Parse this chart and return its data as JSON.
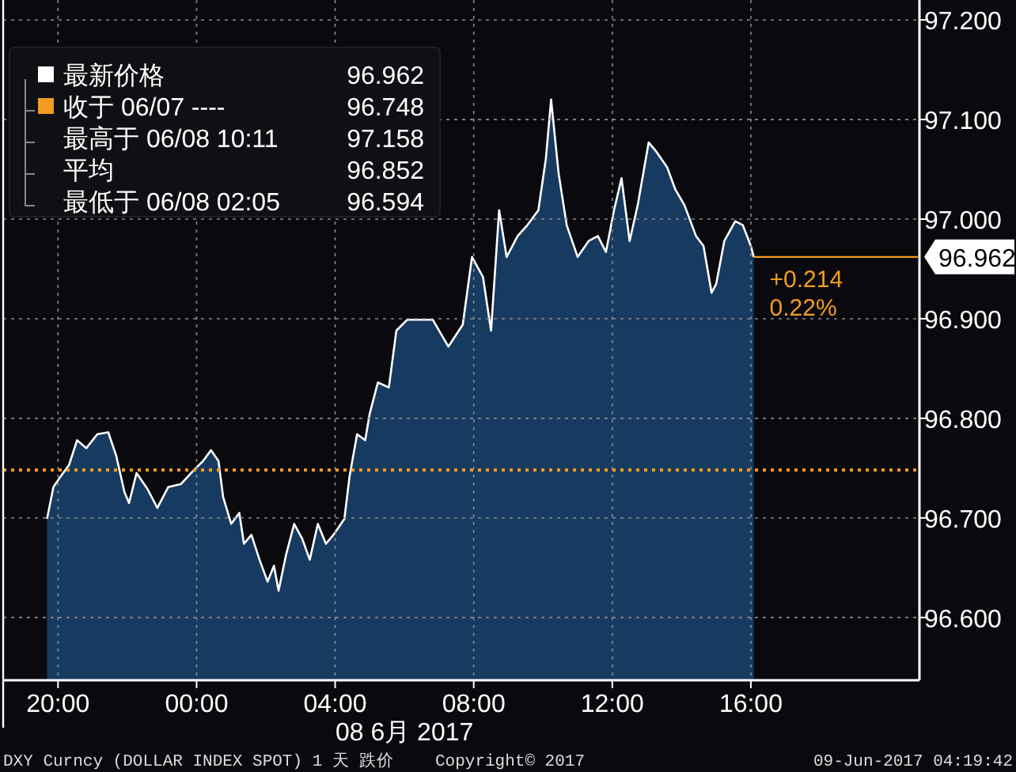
{
  "chart_data": {
    "type": "area",
    "xlabel": "08 6月 2017",
    "x": [
      "2017-06-07T19:41",
      "2017-06-07T19:52",
      "2017-06-07T20:05",
      "2017-06-07T20:19",
      "2017-06-07T20:33",
      "2017-06-07T20:49",
      "2017-06-07T21:08",
      "2017-06-07T21:27",
      "2017-06-07T21:41",
      "2017-06-07T21:55",
      "2017-06-07T22:03",
      "2017-06-07T22:16",
      "2017-06-07T22:35",
      "2017-06-07T22:52",
      "2017-06-07T23:11",
      "2017-06-07T23:33",
      "2017-06-07T23:52",
      "2017-06-08T00:11",
      "2017-06-08T00:25",
      "2017-06-08T00:38",
      "2017-06-08T00:46",
      "2017-06-08T01:00",
      "2017-06-08T01:14",
      "2017-06-08T01:22",
      "2017-06-08T01:35",
      "2017-06-08T01:49",
      "2017-06-08T02:03",
      "2017-06-08T02:14",
      "2017-06-08T02:22",
      "2017-06-08T02:35",
      "2017-06-08T02:49",
      "2017-06-08T03:03",
      "2017-06-08T03:16",
      "2017-06-08T03:30",
      "2017-06-08T03:44",
      "2017-06-08T03:57",
      "2017-06-08T04:16",
      "2017-06-08T04:25",
      "2017-06-08T04:38",
      "2017-06-08T04:52",
      "2017-06-08T05:00",
      "2017-06-08T05:14",
      "2017-06-08T05:33",
      "2017-06-08T05:46",
      "2017-06-08T06:05",
      "2017-06-08T06:14",
      "2017-06-08T06:49",
      "2017-06-08T07:16",
      "2017-06-08T07:41",
      "2017-06-08T07:57",
      "2017-06-08T08:16",
      "2017-06-08T08:30",
      "2017-06-08T08:44",
      "2017-06-08T08:57",
      "2017-06-08T09:16",
      "2017-06-08T09:33",
      "2017-06-08T09:52",
      "2017-06-08T10:05",
      "2017-06-08T10:14",
      "2017-06-08T10:27",
      "2017-06-08T10:41",
      "2017-06-08T11:00",
      "2017-06-08T11:19",
      "2017-06-08T11:35",
      "2017-06-08T11:49",
      "2017-06-08T12:03",
      "2017-06-08T12:16",
      "2017-06-08T12:30",
      "2017-06-08T12:44",
      "2017-06-08T13:03",
      "2017-06-08T13:16",
      "2017-06-08T13:35",
      "2017-06-08T13:49",
      "2017-06-08T14:05",
      "2017-06-08T14:25",
      "2017-06-08T14:38",
      "2017-06-08T14:52",
      "2017-06-08T15:00",
      "2017-06-08T15:14",
      "2017-06-08T15:33",
      "2017-06-08T15:46",
      "2017-06-08T16:00",
      "2017-06-08T16:05"
    ],
    "series": [
      {
        "color": "#173a60",
        "values": [
          96.699,
          96.731,
          96.742,
          96.753,
          96.778,
          96.77,
          96.784,
          96.786,
          96.762,
          96.726,
          96.715,
          96.745,
          96.729,
          96.71,
          96.731,
          96.734,
          96.746,
          96.757,
          96.768,
          96.757,
          96.721,
          96.694,
          96.705,
          96.674,
          96.683,
          96.658,
          96.636,
          96.652,
          96.627,
          96.663,
          96.694,
          96.679,
          96.658,
          96.694,
          96.674,
          96.683,
          96.699,
          96.742,
          96.784,
          96.778,
          96.805,
          96.836,
          96.831,
          96.888,
          96.899,
          96.899,
          96.899,
          96.872,
          96.894,
          96.962,
          96.942,
          96.888,
          97.009,
          96.962,
          96.983,
          96.994,
          97.009,
          97.061,
          97.12,
          97.046,
          96.994,
          96.962,
          96.978,
          96.983,
          96.967,
          97.009,
          97.041,
          96.978,
          97.014,
          97.077,
          97.068,
          97.052,
          97.03,
          97.014,
          96.983,
          96.973,
          96.926,
          96.935,
          96.978,
          96.998,
          96.994,
          96.973,
          96.962
        ]
      }
    ],
    "xlim": [
      "2017-06-07T18:25",
      "2017-06-08T20:52"
    ],
    "xticks": [
      {
        "value": "2017-06-07T20:00",
        "label": "20:00"
      },
      {
        "value": "2017-06-08T00:00",
        "label": "00:00"
      },
      {
        "value": "2017-06-08T04:00",
        "label": "04:00"
      },
      {
        "value": "2017-06-08T08:00",
        "label": "08:00"
      },
      {
        "value": "2017-06-08T12:00",
        "label": "12:00"
      },
      {
        "value": "2017-06-08T16:00",
        "label": "16:00"
      }
    ],
    "ylim": [
      96.537,
      97.22
    ],
    "yticks": [
      {
        "value": 96.6,
        "label": "96.600"
      },
      {
        "value": 96.7,
        "label": "96.700"
      },
      {
        "value": 96.8,
        "label": "96.800"
      },
      {
        "value": 96.9,
        "label": "96.900"
      },
      {
        "value": 97.0,
        "label": "97.000"
      },
      {
        "value": 97.1,
        "label": "97.100"
      },
      {
        "value": 97.2,
        "label": "97.200"
      }
    ],
    "grid": true,
    "ref_lines": [
      {
        "axis": "y",
        "value": 96.748,
        "color": "#f39c1f",
        "line_style": "dotted"
      }
    ],
    "annotations": [
      "最新价格",
      "96.962",
      "收于 06/07 ----",
      "96.748",
      "最高于 06/08 10:11",
      "97.158",
      "平均",
      "96.852",
      "最低于 06/08 02:05",
      "96.594",
      {
        "text": "96.962",
        "x": "2017-06-08T16:05",
        "y": 96.962
      },
      "+0.214",
      "0.22%",
      "DXY Curncy (DOLLAR INDEX SPOT) 1 天  跌价",
      "Copyright© 2017",
      "09-Jun-2017 04:19:42"
    ]
  }
}
